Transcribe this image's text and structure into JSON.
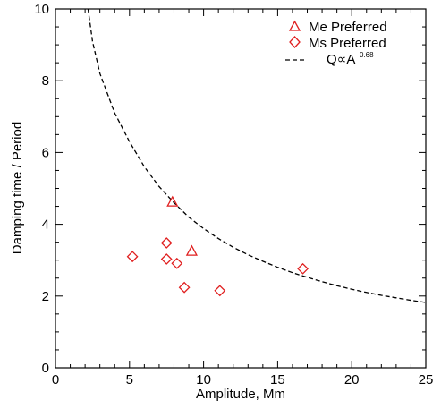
{
  "chart_data": {
    "type": "scatter",
    "title": "",
    "xlabel": "Amplitude, Mm",
    "ylabel": "Damping time / Period",
    "xlim": [
      0,
      25
    ],
    "ylim": [
      0,
      10
    ],
    "x_ticks": [
      0,
      5,
      10,
      15,
      20,
      25
    ],
    "y_ticks": [
      0,
      2,
      4,
      6,
      8,
      10
    ],
    "grid": false,
    "legend_position": "top-right",
    "series": [
      {
        "name": "Me Preferred",
        "marker": "triangle",
        "color": "#e01f1f",
        "points": [
          {
            "x": 7.9,
            "y": 4.62
          },
          {
            "x": 9.2,
            "y": 3.25
          }
        ]
      },
      {
        "name": "Ms Preferred",
        "marker": "diamond",
        "color": "#e01f1f",
        "points": [
          {
            "x": 5.2,
            "y": 3.1
          },
          {
            "x": 7.5,
            "y": 3.48
          },
          {
            "x": 7.5,
            "y": 3.03
          },
          {
            "x": 8.2,
            "y": 2.91
          },
          {
            "x": 8.7,
            "y": 2.24
          },
          {
            "x": 11.1,
            "y": 2.15
          },
          {
            "x": 16.7,
            "y": 2.76
          }
        ]
      }
    ],
    "fit_curve": {
      "label_main": "Q∝A",
      "label_exponent": "0.68",
      "line_style": "dashed",
      "color": "#000000",
      "points": [
        {
          "x": 2.0,
          "y": 10.6
        },
        {
          "x": 2.5,
          "y": 9.1
        },
        {
          "x": 3.0,
          "y": 8.2
        },
        {
          "x": 4.0,
          "y": 7.1
        },
        {
          "x": 5.0,
          "y": 6.3
        },
        {
          "x": 6.0,
          "y": 5.6
        },
        {
          "x": 7.0,
          "y": 5.05
        },
        {
          "x": 8.0,
          "y": 4.6
        },
        {
          "x": 9.0,
          "y": 4.2
        },
        {
          "x": 10.0,
          "y": 3.88
        },
        {
          "x": 11.0,
          "y": 3.6
        },
        {
          "x": 12.0,
          "y": 3.36
        },
        {
          "x": 13.0,
          "y": 3.15
        },
        {
          "x": 14.0,
          "y": 2.97
        },
        {
          "x": 15.0,
          "y": 2.8
        },
        {
          "x": 16.0,
          "y": 2.65
        },
        {
          "x": 17.0,
          "y": 2.52
        },
        {
          "x": 18.0,
          "y": 2.4
        },
        {
          "x": 19.0,
          "y": 2.29
        },
        {
          "x": 20.0,
          "y": 2.19
        },
        {
          "x": 21.0,
          "y": 2.1
        },
        {
          "x": 22.0,
          "y": 2.02
        },
        {
          "x": 23.0,
          "y": 1.95
        },
        {
          "x": 24.0,
          "y": 1.88
        },
        {
          "x": 25.0,
          "y": 1.82
        }
      ]
    }
  }
}
